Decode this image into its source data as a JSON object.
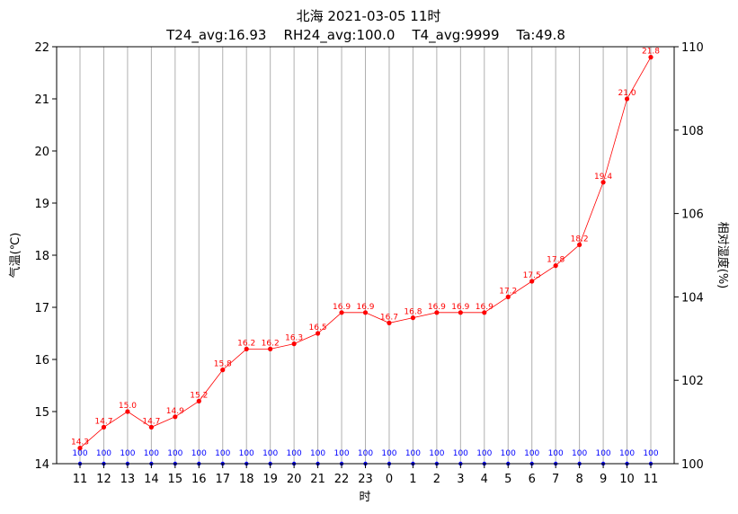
{
  "chart_data": {
    "type": "line",
    "title": "北海 2021-03-05 11时",
    "subtitle": "T24_avg:16.93    RH24_avg:100.0    T4_avg:9999    Ta:49.8",
    "xlabel": "时",
    "ylabel_left": "气温(℃)",
    "ylabel_right": "相对湿度(%)",
    "categories": [
      "11",
      "12",
      "13",
      "14",
      "15",
      "16",
      "17",
      "18",
      "19",
      "20",
      "21",
      "22",
      "23",
      "0",
      "1",
      "2",
      "3",
      "4",
      "5",
      "6",
      "7",
      "8",
      "9",
      "10",
      "11"
    ],
    "ylim_left": [
      14,
      22
    ],
    "yticks_left": [
      "14",
      "15",
      "16",
      "17",
      "18",
      "19",
      "20",
      "21",
      "22"
    ],
    "ylim_right": [
      100,
      110
    ],
    "yticks_right": [
      "100",
      "102",
      "104",
      "106",
      "108",
      "110"
    ],
    "grid": "vertical",
    "series": [
      {
        "name": "气温",
        "axis": "left",
        "color": "#ff0000",
        "values": [
          14.3,
          14.7,
          15.0,
          14.7,
          14.9,
          15.2,
          15.8,
          16.2,
          16.2,
          16.3,
          16.5,
          16.9,
          16.9,
          16.7,
          16.8,
          16.9,
          16.9,
          16.9,
          17.2,
          17.5,
          17.8,
          18.2,
          19.4,
          21.0,
          21.8
        ],
        "labels": [
          "14.3",
          "14.7",
          "15.0",
          "14.7",
          "14.9",
          "15.2",
          "15.8",
          "16.2",
          "16.2",
          "16.3",
          "16.5",
          "16.9",
          "16.9",
          "16.7",
          "16.8",
          "16.9",
          "16.9",
          "16.9",
          "17.2",
          "17.5",
          "17.8",
          "18.2",
          "19.4",
          "21.0",
          "21.8"
        ]
      },
      {
        "name": "相对湿度",
        "axis": "right",
        "color": "#0000ff",
        "values": [
          100,
          100,
          100,
          100,
          100,
          100,
          100,
          100,
          100,
          100,
          100,
          100,
          100,
          100,
          100,
          100,
          100,
          100,
          100,
          100,
          100,
          100,
          100,
          100,
          100
        ],
        "labels": [
          "100",
          "100",
          "100",
          "100",
          "100",
          "100",
          "100",
          "100",
          "100",
          "100",
          "100",
          "100",
          "100",
          "100",
          "100",
          "100",
          "100",
          "100",
          "100",
          "100",
          "100",
          "100",
          "100",
          "100",
          "100"
        ]
      }
    ]
  }
}
